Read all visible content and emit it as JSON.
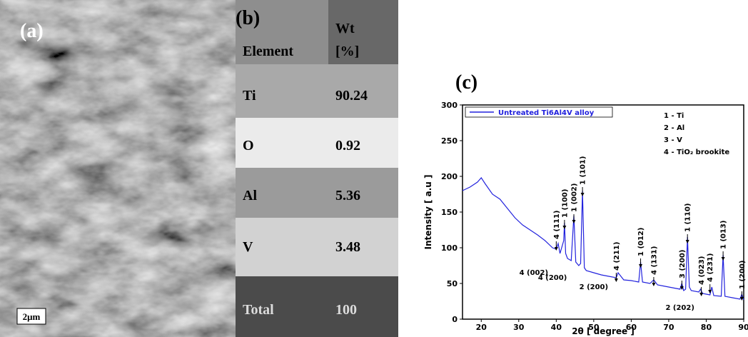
{
  "panel_a": {
    "label": "(a)",
    "scale_bar": "2μm"
  },
  "table": {
    "label": "(b)",
    "header": [
      "Element",
      "Wt [%]"
    ],
    "rows": [
      [
        "Ti",
        "90.24"
      ],
      [
        "O",
        "0.92"
      ],
      [
        "Al",
        "5.36"
      ],
      [
        "V",
        "3.48"
      ],
      [
        "Total",
        "100"
      ]
    ]
  },
  "chart_data": {
    "type": "line",
    "panel_label": "(c)",
    "x_label": "2θ [ degree ]",
    "y_label": "Intensity [ a.u ]",
    "xlim": [
      15,
      90
    ],
    "ylim": [
      0,
      300
    ],
    "xticks": [
      20,
      30,
      40,
      50,
      60,
      70,
      80,
      90
    ],
    "yticks": [
      0,
      50,
      100,
      150,
      200,
      250,
      300
    ],
    "legend_position": "top-left",
    "key": [
      "1 - Ti",
      "2 - Al",
      "3 - V",
      "4 - TiO₂ brookite"
    ],
    "annotations": [
      "4 (111)",
      "1 (100)",
      "1 (002)",
      "1 (101)",
      "4 (211)",
      "1 (012)",
      "4 (131)",
      "3 (200)",
      "1 (110)",
      "4 (023)",
      "4 (231)",
      "1 (013)",
      "1 (200)",
      "4 (002)",
      "4 (200)",
      "2 (200)",
      "2 (202)"
    ],
    "x": [
      15,
      17,
      19,
      20,
      21,
      23,
      25,
      27,
      29,
      31,
      33,
      35,
      37,
      39,
      40,
      40.5,
      41,
      42,
      42.2,
      42.5,
      43,
      44,
      44.7,
      45.2,
      46,
      46.5,
      47,
      47.5,
      48,
      50,
      52,
      54,
      56,
      56.5,
      58,
      60,
      62,
      62.5,
      63,
      65,
      66,
      67,
      69,
      71,
      73,
      73.5,
      74,
      74.5,
      75,
      75.5,
      76,
      78,
      78.5,
      79,
      81,
      81.5,
      82,
      84,
      84.5,
      85,
      87,
      89,
      89.5,
      90
    ],
    "series": [
      {
        "name": "Untreated Ti6Al4V alloy",
        "color": "#2222dd",
        "values": [
          180,
          185,
          192,
          198,
          190,
          175,
          168,
          155,
          142,
          132,
          125,
          118,
          110,
          100,
          98,
          106,
          92,
          110,
          135,
          92,
          85,
          82,
          145,
          80,
          75,
          78,
          180,
          72,
          68,
          65,
          62,
          60,
          58,
          65,
          55,
          54,
          52,
          80,
          52,
          50,
          55,
          48,
          46,
          44,
          42,
          50,
          40,
          42,
          115,
          45,
          40,
          38,
          42,
          36,
          34,
          45,
          33,
          32,
          90,
          32,
          30,
          28,
          35,
          27
        ]
      }
    ]
  }
}
